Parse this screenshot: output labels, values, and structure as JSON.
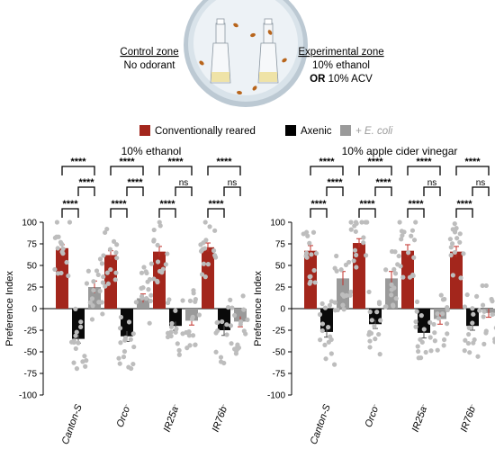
{
  "header": {
    "control_zone_title": "Control zone",
    "control_zone_desc": "No odorant",
    "experimental_zone_title": "Experimental zone",
    "experimental_zone_line1": "10% ethanol",
    "experimental_zone_or": "OR",
    "experimental_zone_line2": " 10% ACV"
  },
  "legend": [
    {
      "label": "Conventionally reared",
      "color": "#a3261c",
      "italic": false
    },
    {
      "label": "Axenic",
      "color": "#000000",
      "italic": false
    },
    {
      "label": "+ E. coli",
      "color": "#9a9a9a",
      "italic": true
    }
  ],
  "colors": {
    "cr": "#a3261c",
    "ax": "#0a0a0a",
    "ec": "#9a9a9a",
    "dots": "#bdbdbd"
  },
  "chart_data": [
    {
      "type": "bar",
      "title": "10% ethanol",
      "ylabel": "Preference Index",
      "ylim": [
        -100,
        100
      ],
      "yticks": [
        100,
        75,
        50,
        25,
        0,
        -25,
        -50,
        -75,
        -100
      ],
      "categories": [
        "Canton-S",
        "Orco-",
        "IR25a-",
        "IR76b-"
      ],
      "category_display": [
        [
          "Canton-S",
          ""
        ],
        [
          "Orco",
          "-"
        ],
        [
          "IR25a",
          "-"
        ],
        [
          "IR76b",
          "-"
        ]
      ],
      "series": [
        {
          "name": "Conventionally reared",
          "values": [
            70,
            62,
            66,
            71
          ],
          "errors": [
            4,
            5,
            6,
            5
          ]
        },
        {
          "name": "Axenic",
          "values": [
            -35,
            -32,
            -20,
            -25
          ],
          "errors": [
            5,
            6,
            5,
            6
          ]
        },
        {
          "name": "+ E. coli",
          "values": [
            25,
            12,
            -14,
            -15
          ],
          "errors": [
            7,
            5,
            5,
            6
          ]
        }
      ],
      "significance": [
        {
          "a": "Conventionally reared",
          "b": "Axenic",
          "labels": [
            "****",
            "****",
            "****",
            "****"
          ]
        },
        {
          "a": "Conventionally reared",
          "b": "+ E. coli",
          "labels": [
            "****",
            "****",
            "****",
            "****"
          ]
        },
        {
          "a": "Axenic",
          "b": "+ E. coli",
          "labels": [
            "****",
            "****",
            "ns",
            "ns"
          ]
        }
      ]
    },
    {
      "type": "bar",
      "title": "10% apple cider vinegar",
      "ylabel": "Preference Index",
      "ylim": [
        -100,
        100
      ],
      "yticks": [
        100,
        75,
        50,
        25,
        0,
        -25,
        -50,
        -75,
        -100
      ],
      "categories": [
        "Canton-S",
        "Orco-",
        "IR25a-",
        "IR76b-"
      ],
      "category_display": [
        [
          "Canton-S",
          ""
        ],
        [
          "Orco",
          "-"
        ],
        [
          "IR25a",
          "-"
        ],
        [
          "IR76b",
          "-"
        ]
      ],
      "series": [
        {
          "name": "Conventionally reared",
          "values": [
            67,
            76,
            67,
            66
          ],
          "errors": [
            6,
            5,
            7,
            6
          ]
        },
        {
          "name": "Axenic",
          "values": [
            -27,
            -18,
            -28,
            -20
          ],
          "errors": [
            6,
            5,
            6,
            5
          ]
        },
        {
          "name": "+ E. coli",
          "values": [
            35,
            35,
            -12,
            -5
          ],
          "errors": [
            8,
            8,
            6,
            5
          ]
        }
      ],
      "significance": [
        {
          "a": "Conventionally reared",
          "b": "Axenic",
          "labels": [
            "****",
            "****",
            "****",
            "****"
          ]
        },
        {
          "a": "Conventionally reared",
          "b": "+ E. coli",
          "labels": [
            "****",
            "****",
            "****",
            "****"
          ]
        },
        {
          "a": "Axenic",
          "b": "+ E. coli",
          "labels": [
            "****",
            "****",
            "ns",
            "ns"
          ]
        }
      ]
    }
  ]
}
